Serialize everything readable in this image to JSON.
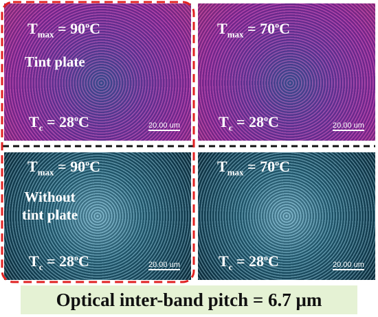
{
  "panels": [
    {
      "tmax": {
        "base": "T",
        "sub": "max",
        "eq": " = 90",
        "sup": "o",
        "unit": "C"
      },
      "mode": [
        "Tint plate"
      ],
      "tc": {
        "base": "T",
        "sub": "c",
        "eq": " = 28",
        "sup": "o",
        "unit": "C"
      },
      "scale": "20.00 um"
    },
    {
      "tmax": {
        "base": "T",
        "sub": "max",
        "eq": " = 70",
        "sup": "o",
        "unit": "C"
      },
      "tc": {
        "base": "T",
        "sub": "c",
        "eq": " = 28",
        "sup": "o",
        "unit": "C"
      },
      "scale": "20.00 um"
    },
    {
      "tmax": {
        "base": "T",
        "sub": "max",
        "eq": " = 90",
        "sup": "o",
        "unit": "C"
      },
      "mode": [
        "Without",
        "tint plate"
      ],
      "tc": {
        "base": "T",
        "sub": "c",
        "eq": " = 28",
        "sup": "o",
        "unit": "C"
      },
      "scale": "20.00 um"
    },
    {
      "tmax": {
        "base": "T",
        "sub": "max",
        "eq": " = 70",
        "sup": "o",
        "unit": "C"
      },
      "tc": {
        "base": "T",
        "sub": "c",
        "eq": " = 28",
        "sup": "o",
        "unit": "C"
      },
      "scale": "20.00 um"
    }
  ],
  "caption": "Optical inter-band pitch = 6.7 μm"
}
